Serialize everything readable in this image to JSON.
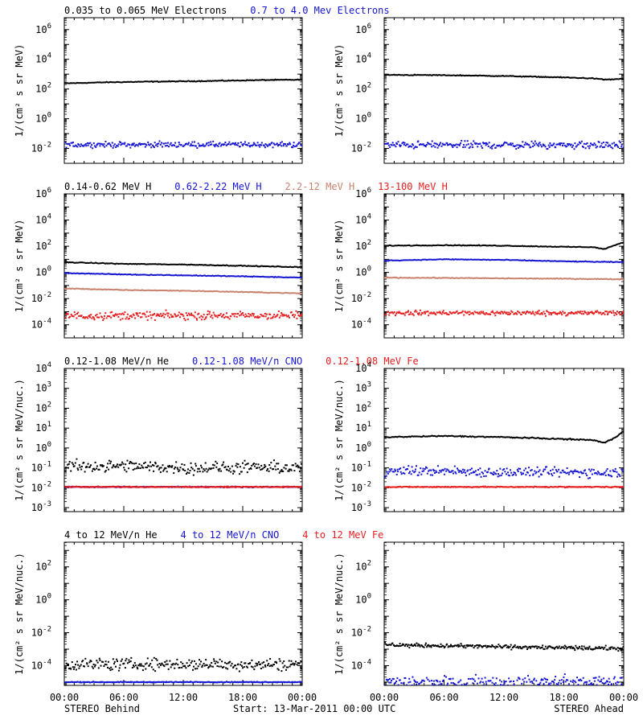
{
  "figure": {
    "footer_left": "STEREO Behind",
    "footer_center": "Start: 13-Mar-2011 00:00 UTC",
    "footer_right": "STEREO Ahead"
  },
  "colors": {
    "black": "#000000",
    "blue": "#1414d2",
    "tan": "#c8826e",
    "red": "#e61e1e"
  },
  "chart_data": [
    {
      "type": "scatter",
      "row": 0,
      "title_items": [
        {
          "text": "0.035 to 0.065 MeV Electrons",
          "color": "black"
        },
        {
          "text": "0.7 to 4.0 Mev Electrons",
          "color": "blue"
        }
      ],
      "ylabel": "1/(cm² s sr MeV)",
      "yscale": "log",
      "ylim_exp": [
        -3,
        6.8
      ],
      "tick_exps": [
        -2,
        0,
        2,
        4,
        6
      ],
      "x_ticks": [
        "00:00",
        "06:00",
        "12:00",
        "18:00",
        "00:00"
      ],
      "x_unit": "hours since start",
      "xlim": [
        0,
        24
      ],
      "panels": [
        {
          "spacecraft": "STEREO Behind",
          "series": [
            {
              "color": "black",
              "style": "line",
              "points": [
                [
                  0,
                  240
                ],
                [
                  4,
                  280
                ],
                [
                  8,
                  310
                ],
                [
                  12,
                  330
                ],
                [
                  16,
                  360
                ],
                [
                  20,
                  400
                ],
                [
                  24,
                  420
                ]
              ]
            },
            {
              "color": "blue",
              "style": "dots",
              "points": [
                [
                  0,
                  0.018
                ],
                [
                  6,
                  0.018
                ],
                [
                  12,
                  0.018
                ],
                [
                  18,
                  0.018
                ],
                [
                  24,
                  0.018
                ]
              ],
              "spread_dex": 0.15
            }
          ]
        },
        {
          "spacecraft": "STEREO Ahead",
          "series": [
            {
              "color": "black",
              "style": "line",
              "points": [
                [
                  0,
                  900
                ],
                [
                  6,
                  850
                ],
                [
                  12,
                  750
                ],
                [
                  18,
                  600
                ],
                [
                  21,
                  520
                ],
                [
                  22,
                  430
                ],
                [
                  24,
                  480
                ]
              ]
            },
            {
              "color": "blue",
              "style": "dots",
              "points": [
                [
                  0,
                  0.017
                ],
                [
                  6,
                  0.017
                ],
                [
                  12,
                  0.017
                ],
                [
                  18,
                  0.017
                ],
                [
                  24,
                  0.017
                ]
              ],
              "spread_dex": 0.2
            }
          ]
        }
      ]
    },
    {
      "type": "scatter",
      "row": 1,
      "title_items": [
        {
          "text": "0.14-0.62 MeV H",
          "color": "black"
        },
        {
          "text": "0.62-2.22 MeV H",
          "color": "blue"
        },
        {
          "text": "2.2-12 MeV H",
          "color": "tan"
        },
        {
          "text": "13-100 MeV H",
          "color": "red"
        }
      ],
      "ylabel": "1/(cm² s sr MeV)",
      "yscale": "log",
      "ylim_exp": [
        -5,
        6
      ],
      "tick_exps": [
        -4,
        -2,
        0,
        2,
        4,
        6
      ],
      "x_ticks": [
        "00:00",
        "06:00",
        "12:00",
        "18:00",
        "00:00"
      ],
      "x_unit": "hours since start",
      "xlim": [
        0,
        24
      ],
      "panels": [
        {
          "spacecraft": "STEREO Behind",
          "series": [
            {
              "color": "black",
              "style": "line",
              "points": [
                [
                  0,
                  6
                ],
                [
                  6,
                  4.5
                ],
                [
                  12,
                  4
                ],
                [
                  18,
                  3.2
                ],
                [
                  24,
                  2.5
                ]
              ]
            },
            {
              "color": "blue",
              "style": "line",
              "points": [
                [
                  0,
                  0.9
                ],
                [
                  6,
                  0.7
                ],
                [
                  12,
                  0.6
                ],
                [
                  18,
                  0.5
                ],
                [
                  24,
                  0.4
                ]
              ]
            },
            {
              "color": "tan",
              "style": "line",
              "points": [
                [
                  0,
                  0.06
                ],
                [
                  6,
                  0.045
                ],
                [
                  12,
                  0.04
                ],
                [
                  18,
                  0.032
                ],
                [
                  24,
                  0.025
                ]
              ]
            },
            {
              "color": "red",
              "style": "dots",
              "points": [
                [
                  0,
                  0.0005
                ],
                [
                  6,
                  0.0005
                ],
                [
                  12,
                  0.0005
                ],
                [
                  18,
                  0.0005
                ],
                [
                  24,
                  0.0005
                ]
              ],
              "spread_dex": 0.25
            }
          ]
        },
        {
          "spacecraft": "STEREO Ahead",
          "series": [
            {
              "color": "black",
              "style": "line",
              "points": [
                [
                  0,
                  110
                ],
                [
                  6,
                  120
                ],
                [
                  12,
                  110
                ],
                [
                  18,
                  90
                ],
                [
                  21,
                  85
                ],
                [
                  22,
                  60
                ],
                [
                  23,
                  110
                ],
                [
                  24,
                  200
                ]
              ]
            },
            {
              "color": "blue",
              "style": "line",
              "points": [
                [
                  0,
                  8
                ],
                [
                  6,
                  10
                ],
                [
                  12,
                  9
                ],
                [
                  18,
                  7
                ],
                [
                  24,
                  6
                ]
              ]
            },
            {
              "color": "tan",
              "style": "line",
              "points": [
                [
                  0,
                  0.4
                ],
                [
                  6,
                  0.38
                ],
                [
                  12,
                  0.35
                ],
                [
                  18,
                  0.33
                ],
                [
                  24,
                  0.3
                ]
              ]
            },
            {
              "color": "red",
              "style": "dots",
              "points": [
                [
                  0,
                  0.0008
                ],
                [
                  6,
                  0.0008
                ],
                [
                  12,
                  0.0008
                ],
                [
                  18,
                  0.0008
                ],
                [
                  24,
                  0.0008
                ]
              ],
              "spread_dex": 0.15
            }
          ]
        }
      ]
    },
    {
      "type": "scatter",
      "row": 2,
      "title_items": [
        {
          "text": "0.12-1.08 MeV/n He",
          "color": "black"
        },
        {
          "text": "0.12-1.08 MeV/n CNO",
          "color": "blue"
        },
        {
          "text": "0.12-1.08 MeV Fe",
          "color": "red"
        }
      ],
      "ylabel": "1/(cm² s sr MeV/nuc.)",
      "yscale": "log",
      "ylim_exp": [
        -3.2,
        4
      ],
      "tick_exps": [
        -3,
        -2,
        -1,
        0,
        1,
        2,
        3,
        4
      ],
      "x_ticks": [
        "00:00",
        "06:00",
        "12:00",
        "18:00",
        "00:00"
      ],
      "x_unit": "hours since start",
      "xlim": [
        0,
        24
      ],
      "panels": [
        {
          "spacecraft": "STEREO Behind",
          "series": [
            {
              "color": "black",
              "style": "dots",
              "points": [
                [
                  0,
                  0.12
                ],
                [
                  6,
                  0.12
                ],
                [
                  12,
                  0.1
                ],
                [
                  18,
                  0.1
                ],
                [
                  24,
                  0.1
                ]
              ],
              "spread_dex": 0.25
            },
            {
              "color": "blue",
              "style": "dots",
              "points": [
                [
                  0,
                  0.011
                ],
                [
                  24,
                  0.011
                ]
              ],
              "spread_dex": 0.02
            },
            {
              "color": "red",
              "style": "dots",
              "points": [
                [
                  0,
                  0.011
                ],
                [
                  24,
                  0.011
                ]
              ],
              "spread_dex": 0.02
            }
          ]
        },
        {
          "spacecraft": "STEREO Ahead",
          "series": [
            {
              "color": "black",
              "style": "line",
              "points": [
                [
                  0,
                  3.5
                ],
                [
                  6,
                  4
                ],
                [
                  12,
                  3.5
                ],
                [
                  18,
                  2.8
                ],
                [
                  21,
                  2.5
                ],
                [
                  22,
                  1.8
                ],
                [
                  23,
                  3
                ],
                [
                  24,
                  7
                ]
              ]
            },
            {
              "color": "blue",
              "style": "dots",
              "points": [
                [
                  0,
                  0.07
                ],
                [
                  6,
                  0.07
                ],
                [
                  12,
                  0.06
                ],
                [
                  18,
                  0.06
                ],
                [
                  24,
                  0.06
                ]
              ],
              "spread_dex": 0.2
            },
            {
              "color": "red",
              "style": "dots",
              "points": [
                [
                  0,
                  0.011
                ],
                [
                  24,
                  0.011
                ]
              ],
              "spread_dex": 0.02
            }
          ]
        }
      ]
    },
    {
      "type": "scatter",
      "row": 3,
      "title_items": [
        {
          "text": "4 to 12 MeV/n He",
          "color": "black"
        },
        {
          "text": "4 to 12 MeV/n CNO",
          "color": "blue"
        },
        {
          "text": "4 to 12 MeV Fe",
          "color": "red"
        }
      ],
      "ylabel": "1/(cm² s sr MeV/nuc.)",
      "yscale": "log",
      "ylim_exp": [
        -5.2,
        3.5
      ],
      "tick_exps": [
        -4,
        -2,
        0,
        2
      ],
      "x_ticks": [
        "00:00",
        "06:00",
        "12:00",
        "18:00",
        "00:00"
      ],
      "x_unit": "hours since start",
      "xlim": [
        0,
        24
      ],
      "panels": [
        {
          "spacecraft": "STEREO Behind",
          "series": [
            {
              "color": "black",
              "style": "dots",
              "points": [
                [
                  0,
                  0.00012
                ],
                [
                  24,
                  0.00012
                ]
              ],
              "spread_dex": 0.3
            },
            {
              "color": "blue",
              "style": "dots",
              "points": [
                [
                  0,
                  1e-05
                ],
                [
                  24,
                  1e-05
                ]
              ],
              "spread_dex": 0.02
            }
          ]
        },
        {
          "spacecraft": "STEREO Ahead",
          "series": [
            {
              "color": "black",
              "style": "dots",
              "points": [
                [
                  0,
                  0.0018
                ],
                [
                  6,
                  0.0016
                ],
                [
                  12,
                  0.0014
                ],
                [
                  18,
                  0.0012
                ],
                [
                  24,
                  0.0011
                ]
              ],
              "spread_dex": 0.1
            },
            {
              "color": "blue",
              "style": "dots",
              "points": [
                [
                  0,
                  1e-05
                ],
                [
                  24,
                  1e-05
                ]
              ],
              "spread_dex": 0.3
            }
          ]
        }
      ]
    }
  ]
}
